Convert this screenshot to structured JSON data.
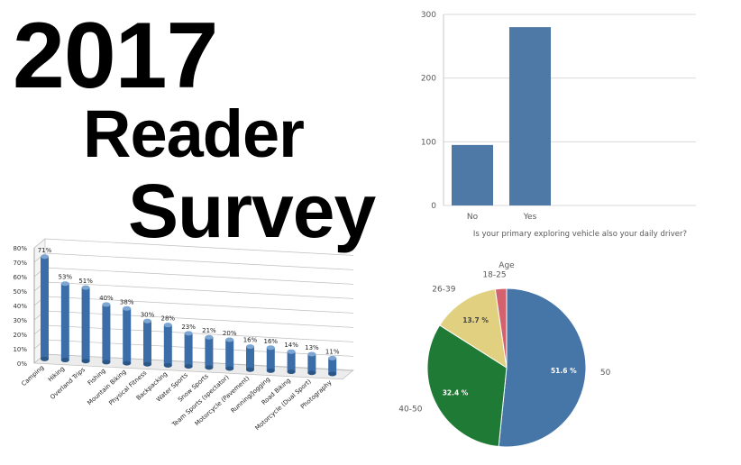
{
  "title": {
    "year": "2017",
    "line2": "Reader",
    "line3": "Survey"
  },
  "colors": {
    "bar_blue": "#4e79a7",
    "activity_blue": "#3b6ea8",
    "pie_50": "#4675a8",
    "pie_40_50": "#1e7a34",
    "pie_26_39": "#e0d080",
    "pie_18_25": "#d4626e"
  },
  "chart_data": [
    {
      "type": "bar",
      "categories": [
        "No",
        "Yes"
      ],
      "values": [
        95,
        280
      ],
      "title": "",
      "xlabel": "Is your primary exploring vehicle also your daily driver?",
      "ylabel": "",
      "ylim": [
        0,
        300
      ],
      "yticks": [
        "0",
        "100",
        "200",
        "300"
      ],
      "grid": true
    },
    {
      "type": "bar",
      "title": "",
      "categories": [
        "Camping",
        "Hiking",
        "Overland Trips",
        "Fishing",
        "Mountain Biking",
        "Physical Fitness",
        "Backpacking",
        "Water Sports",
        "Snow Sports",
        "Team Sports (spectator)",
        "Motorcycle (Pavement)",
        "Running/Jogging",
        "Road Biking",
        "Motorcycle (Dual Sport)",
        "Photography"
      ],
      "values": [
        71,
        53,
        51,
        40,
        38,
        30,
        28,
        23,
        21,
        20,
        16,
        16,
        14,
        13,
        11
      ],
      "data_labels": [
        "71%",
        "53%",
        "51%",
        "40%",
        "38%",
        "30%",
        "28%",
        "23%",
        "21%",
        "20%",
        "16%",
        "16%",
        "14%",
        "13%",
        "11%"
      ],
      "ylim": [
        0,
        80
      ],
      "yticks": [
        "0%",
        "10%",
        "20%",
        "30%",
        "40%",
        "50%",
        "60%",
        "70%",
        "80%"
      ],
      "grid": true
    },
    {
      "type": "pie",
      "title": "Age",
      "slices": [
        {
          "label": "50",
          "value": 51.6,
          "value_label": "51.6 %",
          "color": "#4675a8"
        },
        {
          "label": "40-50",
          "value": 32.4,
          "value_label": "32.4 %",
          "color": "#1e7a34"
        },
        {
          "label": "26-39",
          "value": 13.7,
          "value_label": "13.7 %",
          "color": "#e0d080"
        },
        {
          "label": "18-25",
          "value": 2.3,
          "value_label": "",
          "color": "#d4626e"
        }
      ]
    }
  ]
}
